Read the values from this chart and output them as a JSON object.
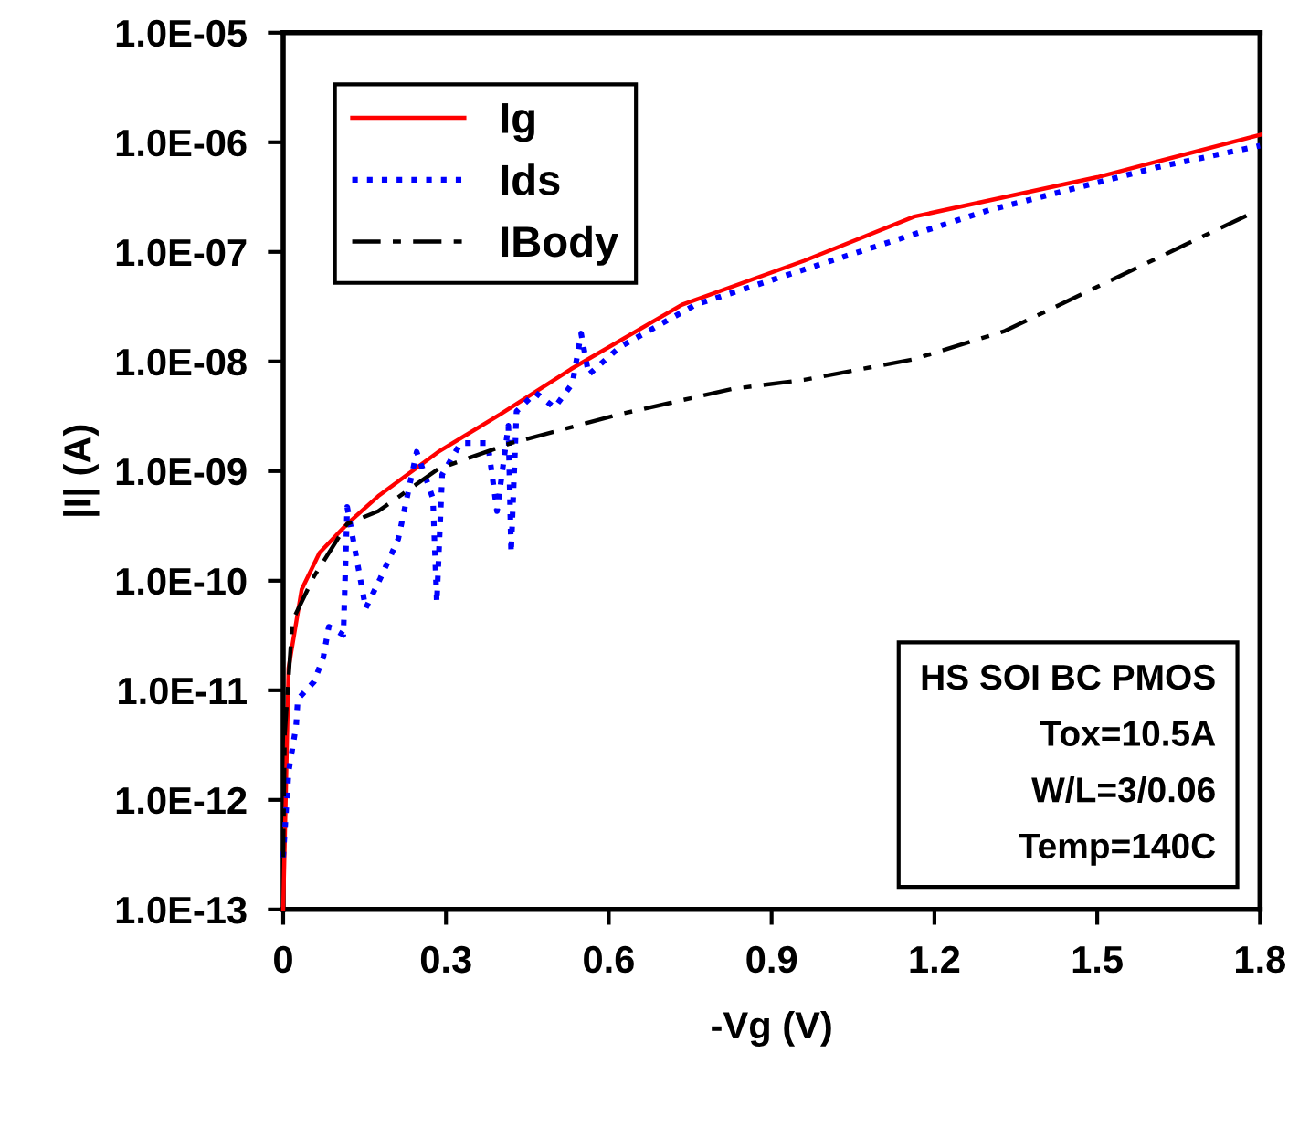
{
  "chart_data": {
    "type": "line",
    "xlabel": "-Vg (V)",
    "ylabel": "|I| (A)",
    "log": "y",
    "xlim": [
      0,
      1.8
    ],
    "xticks": [
      0,
      0.3,
      0.6,
      0.9,
      1.2,
      1.5,
      1.8
    ],
    "ylim": [
      1e-13,
      1e-05
    ],
    "yticks": [
      {
        "value": 1e-13,
        "label": "1.0E-13"
      },
      {
        "value": 1e-12,
        "label": "1.0E-12"
      },
      {
        "value": 1e-11,
        "label": "1.0E-11"
      },
      {
        "value": 1e-10,
        "label": "1.0E-10"
      },
      {
        "value": 1e-09,
        "label": "1.0E-09"
      },
      {
        "value": 1e-08,
        "label": "1.0E-08"
      },
      {
        "value": 1e-07,
        "label": "1.0E-07"
      },
      {
        "value": 1e-06,
        "label": "1.0E-06"
      },
      {
        "value": 1e-05,
        "label": "1.0E-05"
      }
    ],
    "grid": false,
    "legend": "top left",
    "marker": "none",
    "series": [
      {
        "name": "Ig",
        "color": "#ff0000",
        "line_style": "solid",
        "x": [
          0,
          0.003,
          0.01,
          0.034,
          0.067,
          0.118,
          0.175,
          0.286,
          0.4,
          0.53,
          0.735,
          0.96,
          1.163,
          1.5,
          1.8
        ],
        "values": [
          1e-13,
          4.3e-13,
          1.6e-11,
          8.3e-11,
          1.8e-10,
          3.3e-10,
          5.9e-10,
          1.5e-09,
          3.3e-09,
          8.5e-09,
          3.3e-08,
          8.3e-08,
          2.1e-07,
          4.8e-07,
          1.17e-06
        ]
      },
      {
        "name": "Ids",
        "color": "#0000ff",
        "line_style": "dotted",
        "x": [
          0,
          0.01,
          0.024,
          0.027,
          0.057,
          0.074,
          0.084,
          0.111,
          0.118,
          0.152,
          0.179,
          0.212,
          0.246,
          0.276,
          0.283,
          0.293,
          0.327,
          0.377,
          0.394,
          0.415,
          0.42,
          0.43,
          0.465,
          0.5,
          0.533,
          0.549,
          0.563,
          0.62,
          0.76,
          1.0,
          1.3,
          1.61,
          1.8
        ],
        "values": [
          3e-13,
          1.8e-12,
          4.8e-12,
          8.3e-12,
          1.2e-11,
          2e-11,
          3.8e-11,
          3.2e-11,
          4.7e-10,
          5.6e-11,
          1.05e-10,
          2.4e-10,
          1.5e-09,
          5.6e-10,
          6.3e-11,
          9.3e-10,
          1.8e-09,
          1.8e-09,
          4.3e-10,
          2.6e-09,
          1.8e-10,
          3.5e-09,
          5.2e-09,
          3.8e-09,
          6.3e-09,
          1.8e-08,
          7.6e-09,
          1.35e-08,
          3.3e-08,
          8e-08,
          2.4e-07,
          5.9e-07,
          9.3e-07
        ]
      },
      {
        "name": "IBody",
        "color": "#000000",
        "line_style": "dashdot",
        "x": [
          0,
          0.003,
          0.017,
          0.057,
          0.118,
          0.175,
          0.286,
          0.42,
          0.62,
          0.826,
          0.96,
          1.163,
          1.33,
          1.5,
          1.668,
          1.78
        ],
        "values": [
          3e-13,
          4e-12,
          4.3e-11,
          1.1e-10,
          3.3e-10,
          4.3e-10,
          1.05e-09,
          1.8e-09,
          3.3e-09,
          5.6e-09,
          6.8e-09,
          1.05e-08,
          1.9e-08,
          4.8e-08,
          1.2e-07,
          2.2e-07
        ]
      }
    ],
    "annotations": [
      "HS SOI BC PMOS",
      "Tox=10.5A",
      "W/L=3/0.06",
      "Temp=140C"
    ]
  }
}
